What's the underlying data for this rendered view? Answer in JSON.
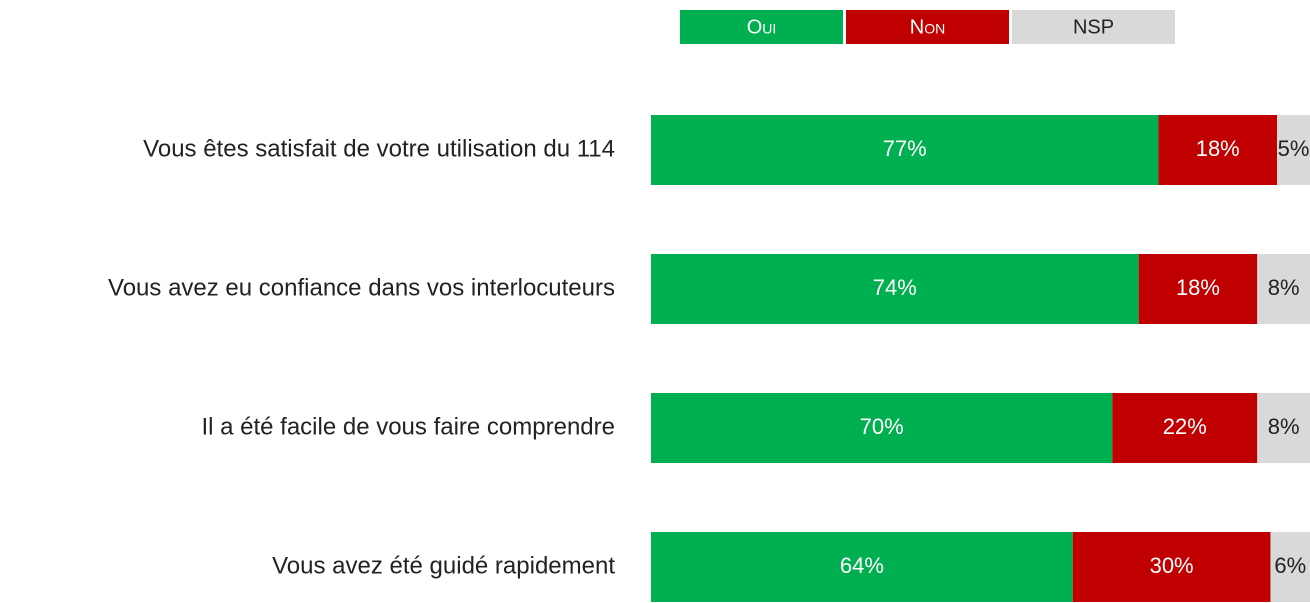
{
  "chart_data": {
    "type": "stacked-bar-horizontal",
    "categories": [
      "Vous êtes satisfait de votre utilisation du 114",
      "Vous avez eu confiance dans vos interlocuteurs",
      "Il a été facile de vous faire comprendre",
      "Vous avez été guidé rapidement"
    ],
    "series": [
      {
        "name": "Oui",
        "color": "#00b050",
        "values": [
          77,
          74,
          70,
          64
        ],
        "value_labels": [
          "77%",
          "74%",
          "70%",
          "64%"
        ]
      },
      {
        "name": "Non",
        "color": "#c00000",
        "values": [
          18,
          18,
          22,
          30
        ],
        "value_labels": [
          "18%",
          "18%",
          "22%",
          "30%"
        ]
      },
      {
        "name": "NSP",
        "color": "#d9d9d9",
        "values": [
          5,
          8,
          8,
          6
        ],
        "value_labels": [
          "5%",
          "8%",
          "8%",
          "6%"
        ]
      }
    ],
    "xlim": [
      0,
      100
    ]
  }
}
